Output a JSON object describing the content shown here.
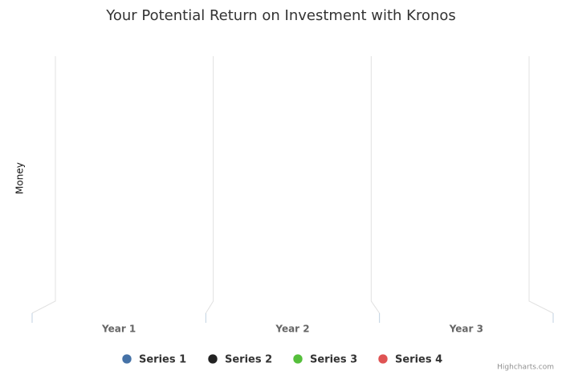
{
  "chart_data": {
    "type": "column",
    "title": "Your Potential Return on Investment with Kronos",
    "y_label": "Money",
    "categories": [
      "Year 1",
      "Year 2",
      "Year 3"
    ],
    "series": [
      {
        "name": "Series 1",
        "color": "#4572a7",
        "values": [
          null,
          null,
          null
        ]
      },
      {
        "name": "Series 2",
        "color": "#222222",
        "values": [
          null,
          null,
          null
        ]
      },
      {
        "name": "Series 3",
        "color": "#55bf3b",
        "values": [
          null,
          null,
          null
        ]
      },
      {
        "name": "Series 4",
        "color": "#df5353",
        "values": [
          null,
          null,
          null
        ]
      }
    ],
    "legend": "bottom",
    "credits": "Highcharts.com"
  }
}
